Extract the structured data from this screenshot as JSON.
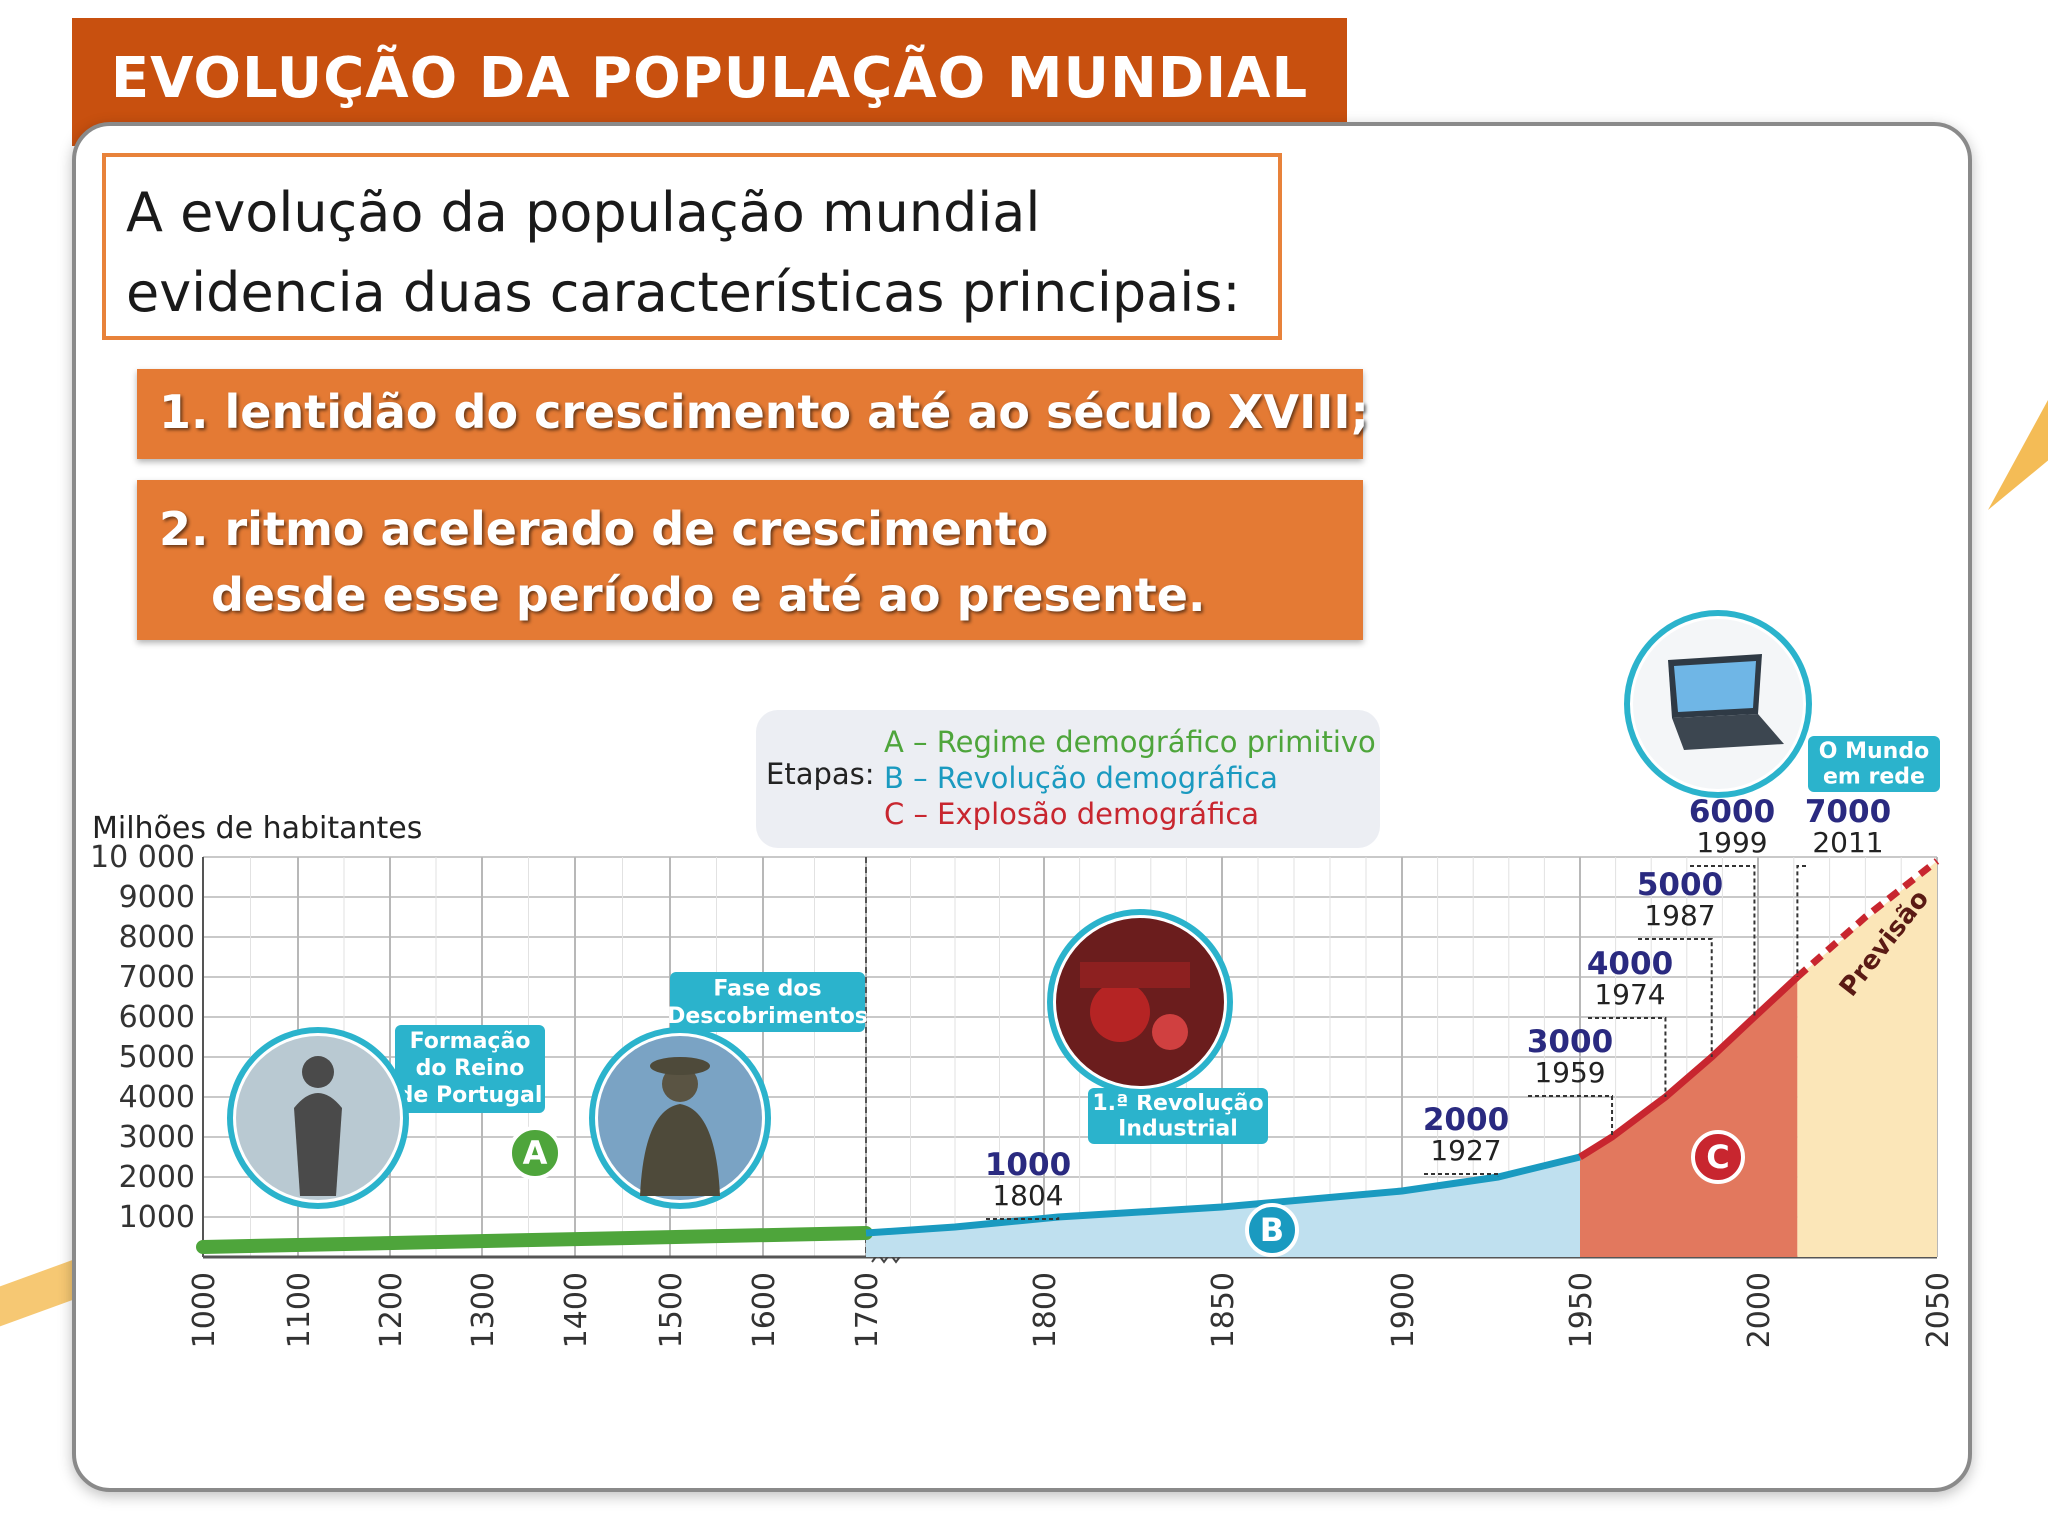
{
  "title": "EVOLUÇÃO DA POPULAÇÃO MUNDIAL",
  "intro": {
    "line1": "A evolução da população mundial",
    "line2": "evidencia duas características principais:"
  },
  "points": [
    {
      "line1": "1. lentidão do crescimento até ao século XVIII;"
    },
    {
      "line1": "2. ritmo acelerado de crescimento",
      "line2": "desde esse período e até ao presente."
    }
  ],
  "chart_data": {
    "type": "area",
    "ylabel": "Milhões de habitantes",
    "y_ticks": [
      "1000",
      "2000",
      "3000",
      "4000",
      "5000",
      "6000",
      "7000",
      "8000",
      "9000",
      "10 000"
    ],
    "x_ticks": [
      "1000",
      "1100",
      "1200",
      "1300",
      "1400",
      "1500",
      "1600",
      "1700",
      "1800",
      "1850",
      "1900",
      "1950",
      "2000",
      "2050"
    ],
    "ylim": [
      0,
      10000
    ],
    "grid": true,
    "legend": {
      "prefix": "Etapas:",
      "items": [
        {
          "label": "A – Regime demográfico primitivo",
          "color": "#4ea53b"
        },
        {
          "label": "B – Revolução demográfica",
          "color": "#1a9ac0"
        },
        {
          "label": "C – Explosão demográfica",
          "color": "#c8262f"
        }
      ]
    },
    "series": [
      {
        "points": [
          [
            1000,
            250
          ],
          [
            1700,
            600
          ]
        ],
        "color": "#4ea53b"
      },
      {
        "points": [
          [
            1700,
            600
          ],
          [
            1750,
            750
          ],
          [
            1804,
            1000
          ],
          [
            1850,
            1250
          ],
          [
            1900,
            1650
          ],
          [
            1927,
            2000
          ],
          [
            1950,
            2500
          ]
        ],
        "color": "#1a9ac0"
      },
      {
        "points": [
          [
            1950,
            2500
          ],
          [
            1959,
            3000
          ],
          [
            1974,
            4000
          ],
          [
            1987,
            5000
          ],
          [
            1999,
            6000
          ],
          [
            2011,
            7000
          ]
        ],
        "color": "#c8262f"
      },
      {
        "points": [
          [
            2011,
            7000
          ],
          [
            2030,
            8500
          ],
          [
            2050,
            9900
          ]
        ],
        "color": "#c8262f",
        "style": "dashed"
      }
    ],
    "milestones": [
      {
        "value": "1000",
        "year": "1804"
      },
      {
        "value": "2000",
        "year": "1927"
      },
      {
        "value": "3000",
        "year": "1959"
      },
      {
        "value": "4000",
        "year": "1974"
      },
      {
        "value": "5000",
        "year": "1987"
      },
      {
        "value": "6000",
        "year": "1999"
      },
      {
        "value": "7000",
        "year": "2011"
      }
    ],
    "stage_markers": [
      "A",
      "B",
      "C"
    ],
    "forecast_label": "Previsão",
    "annotations": [
      {
        "lines": [
          "Formação",
          "do Reino",
          "de Portugal"
        ]
      },
      {
        "lines": [
          "Fase dos",
          "Descobrimentos"
        ]
      },
      {
        "lines": [
          "1.ª Revolução",
          "Industrial"
        ]
      },
      {
        "lines": [
          "O Mundo",
          "em rede"
        ]
      }
    ],
    "colors": {
      "stageA": "#4ea53b",
      "stageB": "#1a9ac0",
      "stageC": "#c8262f",
      "fillB": "#bfe0ef",
      "fillC": "#e2785e",
      "fillForecast": "#fbe6b8",
      "milestone": "#2a2a80",
      "callout": "#2bb3cc",
      "grid": "#c9c9c9"
    },
    "icons": [
      "statue-king-icon",
      "statue-navigator-icon",
      "machinery-icon",
      "laptop-icon"
    ]
  }
}
